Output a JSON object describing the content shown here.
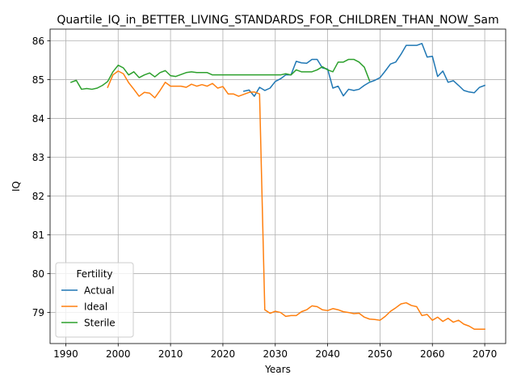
{
  "chart_data": {
    "type": "line",
    "title": "Quartile_IQ_in_BETTER_LIVING_STANDARDS_FOR_CHILDREN_THAN_NOW_Sam",
    "xlabel": "Years",
    "ylabel": "IQ",
    "xlim": [
      1987,
      2074
    ],
    "ylim": [
      78.2,
      86.3
    ],
    "xticks": [
      1990,
      2000,
      2010,
      2020,
      2030,
      2040,
      2050,
      2060,
      2070
    ],
    "yticks": [
      79,
      80,
      81,
      82,
      83,
      84,
      85,
      86
    ],
    "grid": true,
    "legend": {
      "title": "Fertility",
      "placement": "lower-left"
    },
    "series": [
      {
        "name": "Actual",
        "color": "#1f77b4",
        "points": [
          [
            2024,
            84.7
          ],
          [
            2025,
            84.73
          ],
          [
            2026,
            84.57
          ],
          [
            2027,
            84.8
          ],
          [
            2028,
            84.72
          ],
          [
            2029,
            84.78
          ],
          [
            2030,
            84.95
          ],
          [
            2031,
            85.02
          ],
          [
            2032,
            85.12
          ],
          [
            2033,
            85.12
          ],
          [
            2034,
            85.47
          ],
          [
            2035,
            85.43
          ],
          [
            2036,
            85.42
          ],
          [
            2037,
            85.52
          ],
          [
            2038,
            85.52
          ],
          [
            2039,
            85.3
          ],
          [
            2040,
            85.27
          ],
          [
            2041,
            84.78
          ],
          [
            2042,
            84.83
          ],
          [
            2043,
            84.58
          ],
          [
            2044,
            84.75
          ],
          [
            2045,
            84.72
          ],
          [
            2046,
            84.75
          ],
          [
            2047,
            84.85
          ],
          [
            2048,
            84.93
          ],
          [
            2049,
            84.98
          ],
          [
            2050,
            85.05
          ],
          [
            2051,
            85.22
          ],
          [
            2052,
            85.4
          ],
          [
            2053,
            85.45
          ],
          [
            2054,
            85.65
          ],
          [
            2055,
            85.88
          ],
          [
            2056,
            85.88
          ],
          [
            2057,
            85.88
          ],
          [
            2058,
            85.93
          ],
          [
            2059,
            85.58
          ],
          [
            2060,
            85.6
          ],
          [
            2061,
            85.08
          ],
          [
            2062,
            85.22
          ],
          [
            2063,
            84.93
          ],
          [
            2064,
            84.97
          ],
          [
            2065,
            84.85
          ],
          [
            2066,
            84.72
          ],
          [
            2067,
            84.68
          ],
          [
            2068,
            84.66
          ],
          [
            2069,
            84.8
          ],
          [
            2070,
            84.85
          ]
        ]
      },
      {
        "name": "Ideal",
        "color": "#ff7f0e",
        "points": [
          [
            1998,
            84.8
          ],
          [
            1999,
            85.12
          ],
          [
            2000,
            85.22
          ],
          [
            2001,
            85.15
          ],
          [
            2002,
            84.92
          ],
          [
            2003,
            84.75
          ],
          [
            2004,
            84.57
          ],
          [
            2005,
            84.67
          ],
          [
            2006,
            84.65
          ],
          [
            2007,
            84.53
          ],
          [
            2008,
            84.72
          ],
          [
            2009,
            84.93
          ],
          [
            2010,
            84.83
          ],
          [
            2011,
            84.83
          ],
          [
            2012,
            84.83
          ],
          [
            2013,
            84.8
          ],
          [
            2014,
            84.88
          ],
          [
            2015,
            84.83
          ],
          [
            2016,
            84.87
          ],
          [
            2017,
            84.83
          ],
          [
            2018,
            84.9
          ],
          [
            2019,
            84.78
          ],
          [
            2020,
            84.82
          ],
          [
            2021,
            84.63
          ],
          [
            2022,
            84.63
          ],
          [
            2023,
            84.57
          ],
          [
            2024,
            84.62
          ],
          [
            2025,
            84.67
          ],
          [
            2026,
            84.68
          ],
          [
            2027,
            84.63
          ],
          [
            2028,
            79.07
          ],
          [
            2029,
            78.98
          ],
          [
            2030,
            79.03
          ],
          [
            2031,
            79.0
          ],
          [
            2032,
            78.9
          ],
          [
            2033,
            78.92
          ],
          [
            2034,
            78.92
          ],
          [
            2035,
            79.02
          ],
          [
            2036,
            79.07
          ],
          [
            2037,
            79.17
          ],
          [
            2038,
            79.15
          ],
          [
            2039,
            79.07
          ],
          [
            2040,
            79.05
          ],
          [
            2041,
            79.1
          ],
          [
            2042,
            79.07
          ],
          [
            2043,
            79.02
          ],
          [
            2044,
            79.0
          ],
          [
            2045,
            78.97
          ],
          [
            2046,
            78.98
          ],
          [
            2047,
            78.88
          ],
          [
            2048,
            78.83
          ],
          [
            2049,
            78.82
          ],
          [
            2050,
            78.8
          ],
          [
            2051,
            78.9
          ],
          [
            2052,
            79.03
          ],
          [
            2053,
            79.12
          ],
          [
            2054,
            79.22
          ],
          [
            2055,
            79.25
          ],
          [
            2056,
            79.18
          ],
          [
            2057,
            79.15
          ],
          [
            2058,
            78.92
          ],
          [
            2059,
            78.95
          ],
          [
            2060,
            78.8
          ],
          [
            2061,
            78.88
          ],
          [
            2062,
            78.77
          ],
          [
            2063,
            78.85
          ],
          [
            2064,
            78.75
          ],
          [
            2065,
            78.8
          ],
          [
            2066,
            78.7
          ],
          [
            2067,
            78.65
          ],
          [
            2068,
            78.57
          ],
          [
            2069,
            78.57
          ],
          [
            2070,
            78.57
          ]
        ]
      },
      {
        "name": "Sterile",
        "color": "#2ca02c",
        "points": [
          [
            1991,
            84.93
          ],
          [
            1992,
            84.98
          ],
          [
            1993,
            84.75
          ],
          [
            1994,
            84.77
          ],
          [
            1995,
            84.75
          ],
          [
            1996,
            84.78
          ],
          [
            1997,
            84.85
          ],
          [
            1998,
            84.95
          ],
          [
            1999,
            85.2
          ],
          [
            2000,
            85.37
          ],
          [
            2001,
            85.3
          ],
          [
            2002,
            85.12
          ],
          [
            2003,
            85.2
          ],
          [
            2004,
            85.05
          ],
          [
            2005,
            85.12
          ],
          [
            2006,
            85.17
          ],
          [
            2007,
            85.07
          ],
          [
            2008,
            85.18
          ],
          [
            2009,
            85.23
          ],
          [
            2010,
            85.1
          ],
          [
            2011,
            85.08
          ],
          [
            2012,
            85.13
          ],
          [
            2013,
            85.18
          ],
          [
            2014,
            85.2
          ],
          [
            2015,
            85.18
          ],
          [
            2016,
            85.18
          ],
          [
            2017,
            85.18
          ],
          [
            2018,
            85.12
          ],
          [
            2019,
            85.12
          ],
          [
            2020,
            85.12
          ],
          [
            2021,
            85.12
          ],
          [
            2022,
            85.12
          ],
          [
            2023,
            85.12
          ],
          [
            2024,
            85.12
          ],
          [
            2025,
            85.12
          ],
          [
            2026,
            85.12
          ],
          [
            2027,
            85.12
          ],
          [
            2028,
            85.12
          ],
          [
            2029,
            85.12
          ],
          [
            2030,
            85.12
          ],
          [
            2031,
            85.12
          ],
          [
            2032,
            85.15
          ],
          [
            2033,
            85.12
          ],
          [
            2034,
            85.25
          ],
          [
            2035,
            85.2
          ],
          [
            2036,
            85.2
          ],
          [
            2037,
            85.2
          ],
          [
            2038,
            85.25
          ],
          [
            2039,
            85.33
          ],
          [
            2040,
            85.25
          ],
          [
            2041,
            85.2
          ],
          [
            2042,
            85.45
          ],
          [
            2043,
            85.45
          ],
          [
            2044,
            85.52
          ],
          [
            2045,
            85.52
          ],
          [
            2046,
            85.45
          ],
          [
            2047,
            85.32
          ],
          [
            2048,
            84.97
          ]
        ]
      }
    ]
  }
}
